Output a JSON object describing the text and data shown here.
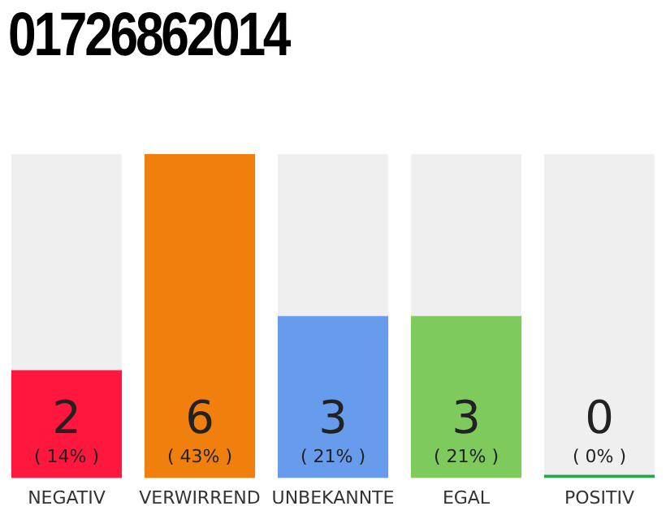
{
  "chart_data": {
    "type": "bar",
    "title": "01726862014",
    "categories": [
      "NEGATIV",
      "VERWIRREND",
      "UNBEKANNTE",
      "EGAL",
      "POSITIV"
    ],
    "values": [
      2,
      6,
      3,
      3,
      0
    ],
    "colors": [
      "#ff173d",
      "#f07f0d",
      "#679ced",
      "#7eca5c",
      "#22a84a"
    ],
    "data_labels": true,
    "annotations": [
      "( 14% )",
      "( 43% )",
      "( 21% )",
      "( 21% )",
      "( 0% )"
    ],
    "tick_labels": "x"
  }
}
